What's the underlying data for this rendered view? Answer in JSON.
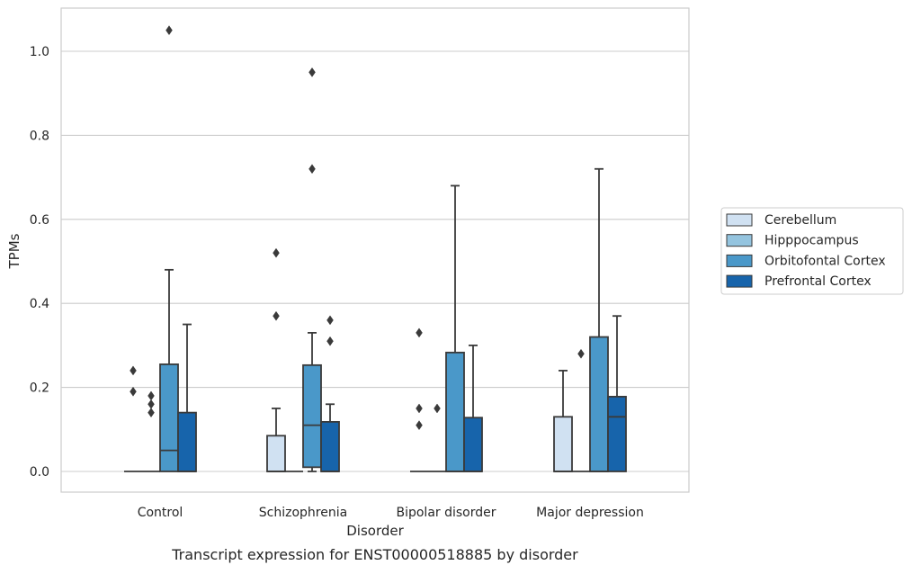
{
  "chart_data": {
    "type": "box",
    "caption": "Transcript expression for ENST00000518885 by disorder",
    "xlabel": "Disorder",
    "ylabel": "TPMs",
    "ylim": [
      -0.05,
      1.1
    ],
    "yticks": [
      "0.0",
      "0.2",
      "0.4",
      "0.6",
      "0.8",
      "1.0"
    ],
    "grid": "horizontal",
    "legend_position": "right",
    "categories": [
      "Control",
      "Schizophrenia",
      "Bipolar disorder",
      "Major depression"
    ],
    "series": [
      {
        "name": "Cerebellum",
        "color": "#d0e1f2",
        "boxes": [
          {
            "q1": 0,
            "median": 0,
            "q3": 0,
            "whisker_low": 0,
            "whisker_high": 0,
            "outliers": [
              0.24,
              0.19
            ]
          },
          {
            "q1": 0,
            "median": 0,
            "q3": 0.085,
            "whisker_low": 0,
            "whisker_high": 0.15,
            "outliers": [
              0.52,
              0.37
            ]
          },
          {
            "q1": 0,
            "median": 0,
            "q3": 0,
            "whisker_low": 0,
            "whisker_high": 0,
            "outliers": [
              0.33,
              0.15,
              0.11
            ]
          },
          {
            "q1": 0,
            "median": 0,
            "q3": 0.13,
            "whisker_low": 0,
            "whisker_high": 0.24,
            "outliers": []
          }
        ]
      },
      {
        "name": "Hipppocampus",
        "color": "#94c4df",
        "boxes": [
          {
            "q1": 0,
            "median": 0,
            "q3": 0,
            "whisker_low": 0,
            "whisker_high": 0,
            "outliers": [
              0.18,
              0.16,
              0.14
            ]
          },
          {
            "q1": 0,
            "median": 0,
            "q3": 0,
            "whisker_low": 0,
            "whisker_high": 0,
            "outliers": []
          },
          {
            "q1": 0,
            "median": 0,
            "q3": 0,
            "whisker_low": 0,
            "whisker_high": 0,
            "outliers": [
              0.15
            ]
          },
          {
            "q1": 0,
            "median": 0,
            "q3": 0,
            "whisker_low": 0,
            "whisker_high": 0,
            "outliers": [
              0.28
            ]
          }
        ]
      },
      {
        "name": "Orbitofontal Cortex",
        "color": "#4a98c9",
        "boxes": [
          {
            "q1": 0,
            "median": 0.05,
            "q3": 0.255,
            "whisker_low": 0,
            "whisker_high": 0.48,
            "outliers": [
              1.05
            ]
          },
          {
            "q1": 0.01,
            "median": 0.11,
            "q3": 0.253,
            "whisker_low": 0,
            "whisker_high": 0.33,
            "outliers": [
              0.95,
              0.72
            ]
          },
          {
            "q1": 0,
            "median": 0,
            "q3": 0.283,
            "whisker_low": 0,
            "whisker_high": 0.68,
            "outliers": []
          },
          {
            "q1": 0,
            "median": 0,
            "q3": 0.32,
            "whisker_low": 0,
            "whisker_high": 0.72,
            "outliers": []
          }
        ]
      },
      {
        "name": "Prefrontal Cortex",
        "color": "#1764ab",
        "boxes": [
          {
            "q1": 0,
            "median": 0,
            "q3": 0.14,
            "whisker_low": 0,
            "whisker_high": 0.35,
            "outliers": []
          },
          {
            "q1": 0,
            "median": 0,
            "q3": 0.118,
            "whisker_low": 0,
            "whisker_high": 0.16,
            "outliers": [
              0.36,
              0.31
            ]
          },
          {
            "q1": 0,
            "median": 0,
            "q3": 0.128,
            "whisker_low": 0,
            "whisker_high": 0.3,
            "outliers": []
          },
          {
            "q1": 0,
            "median": 0.13,
            "q3": 0.178,
            "whisker_low": 0,
            "whisker_high": 0.37,
            "outliers": []
          }
        ]
      }
    ]
  }
}
